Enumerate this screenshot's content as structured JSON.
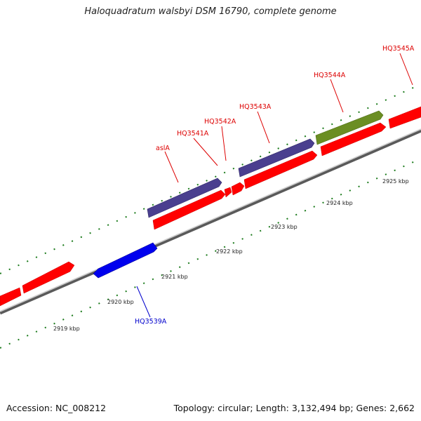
{
  "title": "Haloquadratum walsbyi DSM 16790, complete genome",
  "footer": {
    "accession": "Accession: NC_008212",
    "topology": "Topology: circular; Length: 3,132,494 bp; Genes: 2,662"
  },
  "scale_labels": [
    "2919 kbp",
    "2920 kbp",
    "2921 kbp",
    "2922 kbp",
    "2923 kbp",
    "2924 kbp",
    "2925 kbp"
  ],
  "gene_labels": [
    {
      "id": "aslA",
      "color": "#dd0000"
    },
    {
      "id": "HQ3541A",
      "color": "#dd0000"
    },
    {
      "id": "HQ3542A",
      "color": "#dd0000"
    },
    {
      "id": "HQ3543A",
      "color": "#dd0000"
    },
    {
      "id": "HQ3544A",
      "color": "#dd0000"
    },
    {
      "id": "HQ3545A",
      "color": "#dd0000"
    },
    {
      "id": "HQ3539A",
      "color": "#0000cc"
    }
  ],
  "colors": {
    "cds": "#ff0000",
    "feature_forward": "#4a3f8f",
    "feature_reverse": "#0000ee",
    "feature_other": "#6b8e23",
    "backbone": "#8a8a8a",
    "gc_ticks": "#1a7a1a"
  }
}
